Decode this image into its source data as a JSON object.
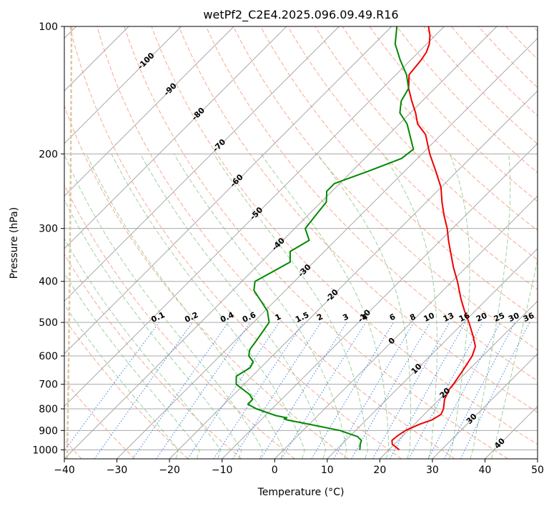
{
  "chart_data": {
    "type": "line",
    "title": "wetPf2_C2E4.2025.096.09.49.R16",
    "xlabel": "Temperature (°C)",
    "ylabel": "Pressure (hPa)",
    "xlim": [
      -40,
      50
    ],
    "ylim": [
      1050,
      100
    ],
    "y_scale": "log",
    "grid": true,
    "x_ticks": [
      -40,
      -30,
      -20,
      -10,
      0,
      10,
      20,
      30,
      40,
      50
    ],
    "y_ticks": [
      1000,
      900,
      800,
      700,
      600,
      500,
      400,
      300,
      200,
      100
    ],
    "skew_t": true,
    "series": [
      {
        "color": "#ee0000",
        "points": [
          [
            1000,
            22.0
          ],
          [
            970,
            19.6
          ],
          [
            950,
            18.8
          ],
          [
            925,
            19.0
          ],
          [
            900,
            19.5
          ],
          [
            870,
            21.0
          ],
          [
            850,
            22.5
          ],
          [
            825,
            23.2
          ],
          [
            800,
            22.6
          ],
          [
            760,
            21.0
          ],
          [
            720,
            20.0
          ],
          [
            700,
            19.8
          ],
          [
            650,
            19.0
          ],
          [
            600,
            18.0
          ],
          [
            570,
            16.8
          ],
          [
            540,
            14.5
          ],
          [
            500,
            11.0
          ],
          [
            470,
            8.0
          ],
          [
            440,
            5.0
          ],
          [
            400,
            1.0
          ],
          [
            370,
            -2.5
          ],
          [
            340,
            -6.0
          ],
          [
            320,
            -8.5
          ],
          [
            300,
            -11.0
          ],
          [
            280,
            -14.0
          ],
          [
            260,
            -17.0
          ],
          [
            240,
            -20.0
          ],
          [
            220,
            -24.0
          ],
          [
            200,
            -28.5
          ],
          [
            180,
            -33.0
          ],
          [
            170,
            -36.5
          ],
          [
            160,
            -39.0
          ],
          [
            150,
            -42.0
          ],
          [
            140,
            -45.0
          ],
          [
            130,
            -47.5
          ],
          [
            120,
            -48.0
          ],
          [
            115,
            -48.5
          ],
          [
            110,
            -49.5
          ],
          [
            105,
            -51.0
          ],
          [
            100,
            -53.0
          ]
        ]
      },
      {
        "color": "#008800",
        "points": [
          [
            1000,
            14.5
          ],
          [
            970,
            13.5
          ],
          [
            950,
            13.0
          ],
          [
            930,
            11.5
          ],
          [
            900,
            7.0
          ],
          [
            870,
            0.0
          ],
          [
            850,
            -5.0
          ],
          [
            845,
            -5.8
          ],
          [
            840,
            -5.5
          ],
          [
            830,
            -8.0
          ],
          [
            800,
            -13.0
          ],
          [
            780,
            -15.5
          ],
          [
            760,
            -15.5
          ],
          [
            740,
            -17.0
          ],
          [
            700,
            -21.5
          ],
          [
            670,
            -23.0
          ],
          [
            640,
            -22.0
          ],
          [
            620,
            -22.5
          ],
          [
            600,
            -24.5
          ],
          [
            580,
            -25.5
          ],
          [
            550,
            -26.0
          ],
          [
            500,
            -27.0
          ],
          [
            470,
            -29.5
          ],
          [
            450,
            -32.0
          ],
          [
            420,
            -36.0
          ],
          [
            400,
            -37.5
          ],
          [
            380,
            -36.0
          ],
          [
            360,
            -34.5
          ],
          [
            340,
            -36.5
          ],
          [
            320,
            -35.0
          ],
          [
            300,
            -38.0
          ],
          [
            280,
            -38.5
          ],
          [
            260,
            -39.0
          ],
          [
            245,
            -41.0
          ],
          [
            235,
            -41.0
          ],
          [
            220,
            -37.0
          ],
          [
            205,
            -33.0
          ],
          [
            195,
            -32.5
          ],
          [
            180,
            -36.0
          ],
          [
            170,
            -38.5
          ],
          [
            160,
            -42.0
          ],
          [
            150,
            -44.0
          ],
          [
            140,
            -45.0
          ],
          [
            130,
            -48.0
          ],
          [
            120,
            -52.0
          ],
          [
            110,
            -56.0
          ],
          [
            100,
            -59.0
          ]
        ]
      }
    ],
    "dry_adiabats_label": [
      "-100",
      "-90",
      "-80",
      "-70",
      "-60",
      "-50",
      "-40",
      "-30",
      "-20",
      "-10",
      "0",
      "10",
      "20",
      "30",
      "40"
    ],
    "mixing_ratio_labels": [
      "0.1",
      "0.2",
      "0.4",
      "0.6",
      "1",
      "1.5",
      "2",
      "3",
      "4",
      "6",
      "8",
      "10",
      "13",
      "16",
      "20",
      "25",
      "30",
      "36"
    ],
    "colors": {
      "temperature": "#ee0000",
      "dewpoint": "#008800",
      "isotherm": "#a8a8a8",
      "isobar": "#a8a8a8",
      "dry_adiabat": "#f7a98f",
      "moist_adiabat": "#9fd09f",
      "mixing_ratio": "#3b82e6",
      "adiabat_label": "#2a6fa8",
      "warm_label": "#d62728",
      "lcl_curve": "#e0c7a2"
    }
  }
}
